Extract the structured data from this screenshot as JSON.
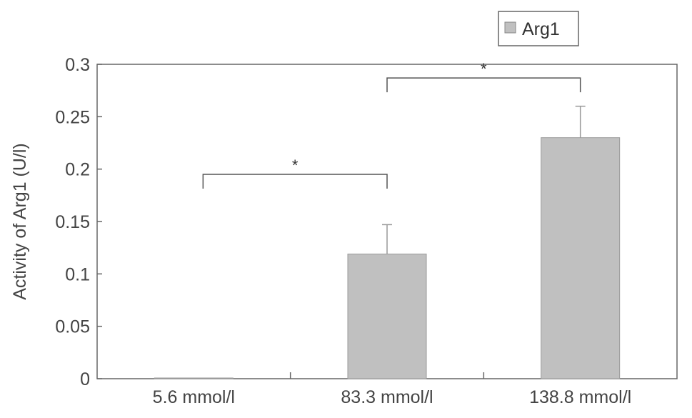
{
  "chart_data": {
    "type": "bar",
    "title": "",
    "xlabel": "",
    "ylabel": "Activity of Arg1 (U/l)",
    "categories": [
      "5.6 mmol/l",
      "83.3 mmol/l",
      "138.8 mmol/l"
    ],
    "series": [
      {
        "name": "Arg1",
        "values": [
          0.0,
          0.119,
          0.23
        ],
        "error": [
          0.0,
          0.028,
          0.03
        ],
        "color": "#c0c0c0"
      }
    ],
    "ylim": [
      0,
      0.3
    ],
    "yticks": [
      "0",
      "0.05",
      "0.1",
      "0.15",
      "0.2",
      "0.25",
      "0.3"
    ],
    "ytick_values": [
      0,
      0.05,
      0.1,
      0.15,
      0.2,
      0.25,
      0.3
    ],
    "grid": false,
    "legend_position": "top-right",
    "significance": [
      {
        "from": 0,
        "to": 1,
        "level": 0.195,
        "label": "*"
      },
      {
        "from": 1,
        "to": 2,
        "level": 0.287,
        "label": "*"
      }
    ]
  }
}
